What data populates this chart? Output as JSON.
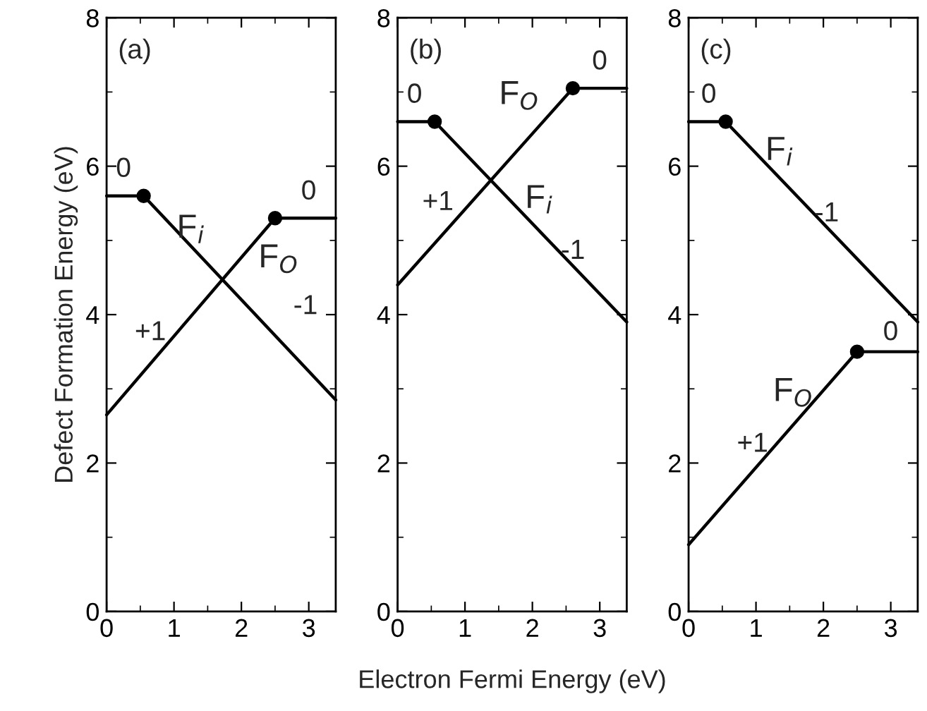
{
  "chart_data": [
    {
      "type": "line",
      "ylabel": "Defect Formation Energy (eV)",
      "xlim": [
        0,
        3.4
      ],
      "ylim": [
        0,
        8
      ],
      "xticks": [
        0,
        1,
        2,
        3
      ],
      "yticks": [
        0,
        2,
        4,
        6,
        8
      ],
      "grid": false,
      "line_style": "solid",
      "series": [
        {
          "color": "#000000",
          "x": [
            0,
            0.55,
            3.4
          ],
          "values": [
            5.6,
            5.6,
            2.85
          ]
        },
        {
          "color": "#000000",
          "x": [
            0,
            2.5,
            3.4
          ],
          "values": [
            2.65,
            5.3,
            5.3
          ]
        },
        {
          "type": "scatter",
          "marker": "circle",
          "color": "#000000",
          "x": [
            0.55,
            2.5
          ],
          "values": [
            5.6,
            5.3
          ]
        }
      ],
      "annotations": [
        "(a)",
        "0",
        "F$_{i}$",
        "0",
        "F$_{O}$",
        "+1",
        "-1"
      ]
    },
    {
      "type": "line",
      "xlabel": "Electron Fermi Energy (eV)",
      "xlim": [
        0,
        3.4
      ],
      "ylim": [
        0,
        8
      ],
      "xticks": [
        0,
        1,
        2,
        3
      ],
      "yticks": [
        0,
        2,
        4,
        6,
        8
      ],
      "grid": false,
      "line_style": "solid",
      "series": [
        {
          "color": "#000000",
          "x": [
            0,
            0.55,
            3.4
          ],
          "values": [
            6.6,
            6.6,
            3.9
          ]
        },
        {
          "color": "#000000",
          "x": [
            0,
            2.6,
            3.4
          ],
          "values": [
            4.4,
            7.05,
            7.05
          ]
        },
        {
          "type": "scatter",
          "marker": "circle",
          "color": "#000000",
          "x": [
            0.55,
            2.6
          ],
          "values": [
            6.6,
            7.05
          ]
        }
      ],
      "annotations": [
        "(b)",
        "0",
        "F$_{O}$",
        "0",
        "+1",
        "F$_{i}$",
        "-1"
      ]
    },
    {
      "type": "line",
      "xlim": [
        0,
        3.4
      ],
      "ylim": [
        0,
        8
      ],
      "xticks": [
        0,
        1,
        2,
        3
      ],
      "yticks": [
        0,
        2,
        4,
        6,
        8
      ],
      "grid": false,
      "line_style": "solid",
      "series": [
        {
          "color": "#000000",
          "x": [
            0,
            0.55,
            3.4
          ],
          "values": [
            6.6,
            6.6,
            3.9
          ]
        },
        {
          "color": "#000000",
          "x": [
            0,
            2.5,
            3.4
          ],
          "values": [
            0.9,
            3.5,
            3.5
          ]
        },
        {
          "type": "scatter",
          "marker": "circle",
          "color": "#000000",
          "x": [
            0.55,
            2.5
          ],
          "values": [
            6.6,
            3.5
          ]
        }
      ],
      "annotations": [
        "(c)",
        "0",
        "F$_{i}$",
        "-1",
        "0",
        "F$_{O}$",
        "+1"
      ]
    }
  ]
}
